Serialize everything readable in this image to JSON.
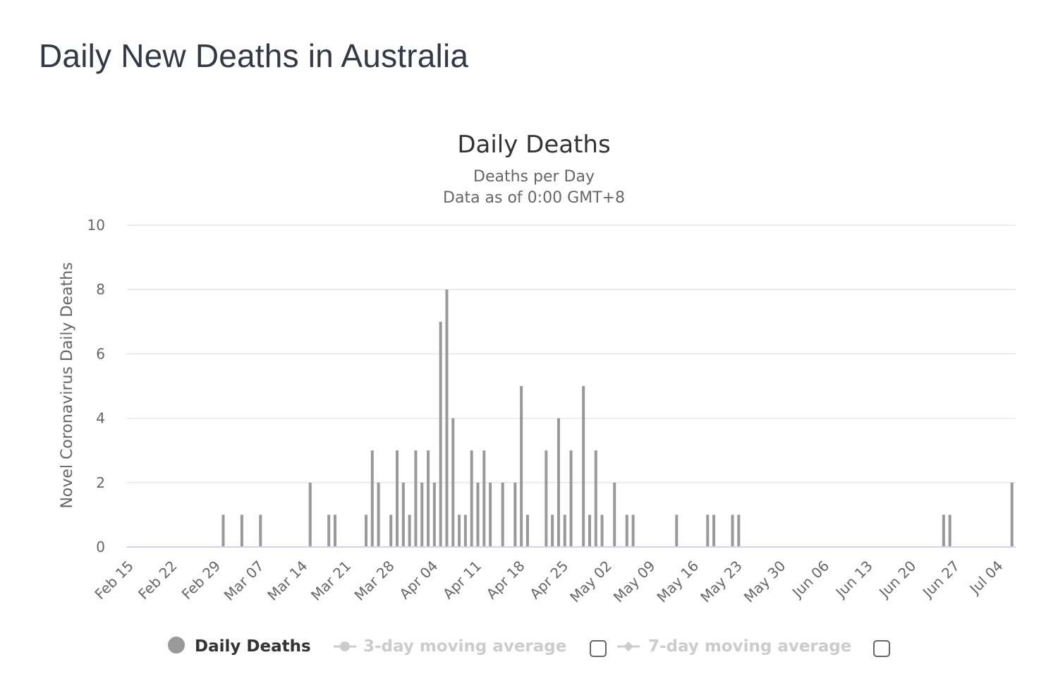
{
  "page": {
    "title": "Daily New Deaths in Australia"
  },
  "colors": {
    "bar": "#999999",
    "grid": "#e6e6e6",
    "axis": "#ccd6eb",
    "legend_active": "#333333",
    "legend_inactive": "#cccccc"
  },
  "chart_data": {
    "type": "bar",
    "title": "Daily Deaths",
    "subtitle_line1": "Deaths per Day",
    "subtitle_line2": "Data as of 0:00 GMT+8",
    "ylabel": "Novel Coronavirus Daily Deaths",
    "xlabel": "",
    "ylim": [
      0,
      10
    ],
    "y_ticks": [
      0,
      2,
      4,
      6,
      8,
      10
    ],
    "x_start": "2020-02-15",
    "x_end": "2020-07-06",
    "x_tick_labels": [
      "Feb 15",
      "Feb 22",
      "Feb 29",
      "Mar 07",
      "Mar 14",
      "Mar 21",
      "Mar 28",
      "Apr 04",
      "Apr 11",
      "Apr 18",
      "Apr 25",
      "May 02",
      "May 09",
      "May 16",
      "May 23",
      "May 30",
      "Jun 06",
      "Jun 13",
      "Jun 20",
      "Jun 27",
      "Jul 04"
    ],
    "grid": true,
    "legend_position": "bottom",
    "series": [
      {
        "name": "Daily Deaths",
        "points": [
          {
            "x": "2020-03-01",
            "y": 1
          },
          {
            "x": "2020-03-04",
            "y": 1
          },
          {
            "x": "2020-03-07",
            "y": 1
          },
          {
            "x": "2020-03-15",
            "y": 2
          },
          {
            "x": "2020-03-18",
            "y": 1
          },
          {
            "x": "2020-03-19",
            "y": 1
          },
          {
            "x": "2020-03-24",
            "y": 1
          },
          {
            "x": "2020-03-25",
            "y": 3
          },
          {
            "x": "2020-03-26",
            "y": 2
          },
          {
            "x": "2020-03-28",
            "y": 1
          },
          {
            "x": "2020-03-29",
            "y": 3
          },
          {
            "x": "2020-03-30",
            "y": 2
          },
          {
            "x": "2020-03-31",
            "y": 1
          },
          {
            "x": "2020-04-01",
            "y": 3
          },
          {
            "x": "2020-04-02",
            "y": 2
          },
          {
            "x": "2020-04-03",
            "y": 3
          },
          {
            "x": "2020-04-04",
            "y": 2
          },
          {
            "x": "2020-04-05",
            "y": 7
          },
          {
            "x": "2020-04-06",
            "y": 8
          },
          {
            "x": "2020-04-07",
            "y": 4
          },
          {
            "x": "2020-04-08",
            "y": 1
          },
          {
            "x": "2020-04-09",
            "y": 1
          },
          {
            "x": "2020-04-10",
            "y": 3
          },
          {
            "x": "2020-04-11",
            "y": 2
          },
          {
            "x": "2020-04-12",
            "y": 3
          },
          {
            "x": "2020-04-13",
            "y": 2
          },
          {
            "x": "2020-04-15",
            "y": 2
          },
          {
            "x": "2020-04-17",
            "y": 2
          },
          {
            "x": "2020-04-18",
            "y": 5
          },
          {
            "x": "2020-04-19",
            "y": 1
          },
          {
            "x": "2020-04-22",
            "y": 3
          },
          {
            "x": "2020-04-23",
            "y": 1
          },
          {
            "x": "2020-04-24",
            "y": 4
          },
          {
            "x": "2020-04-25",
            "y": 1
          },
          {
            "x": "2020-04-26",
            "y": 3
          },
          {
            "x": "2020-04-28",
            "y": 5
          },
          {
            "x": "2020-04-29",
            "y": 1
          },
          {
            "x": "2020-04-30",
            "y": 3
          },
          {
            "x": "2020-05-01",
            "y": 1
          },
          {
            "x": "2020-05-03",
            "y": 2
          },
          {
            "x": "2020-05-05",
            "y": 1
          },
          {
            "x": "2020-05-06",
            "y": 1
          },
          {
            "x": "2020-05-13",
            "y": 1
          },
          {
            "x": "2020-05-18",
            "y": 1
          },
          {
            "x": "2020-05-19",
            "y": 1
          },
          {
            "x": "2020-05-22",
            "y": 1
          },
          {
            "x": "2020-05-23",
            "y": 1
          },
          {
            "x": "2020-06-25",
            "y": 1
          },
          {
            "x": "2020-06-26",
            "y": 1
          },
          {
            "x": "2020-07-06",
            "y": 2
          }
        ]
      }
    ]
  },
  "legend": {
    "items": [
      {
        "label": "Daily Deaths",
        "active": true
      },
      {
        "label": "3-day moving average",
        "active": false
      },
      {
        "label": "7-day moving average",
        "active": false
      }
    ]
  }
}
